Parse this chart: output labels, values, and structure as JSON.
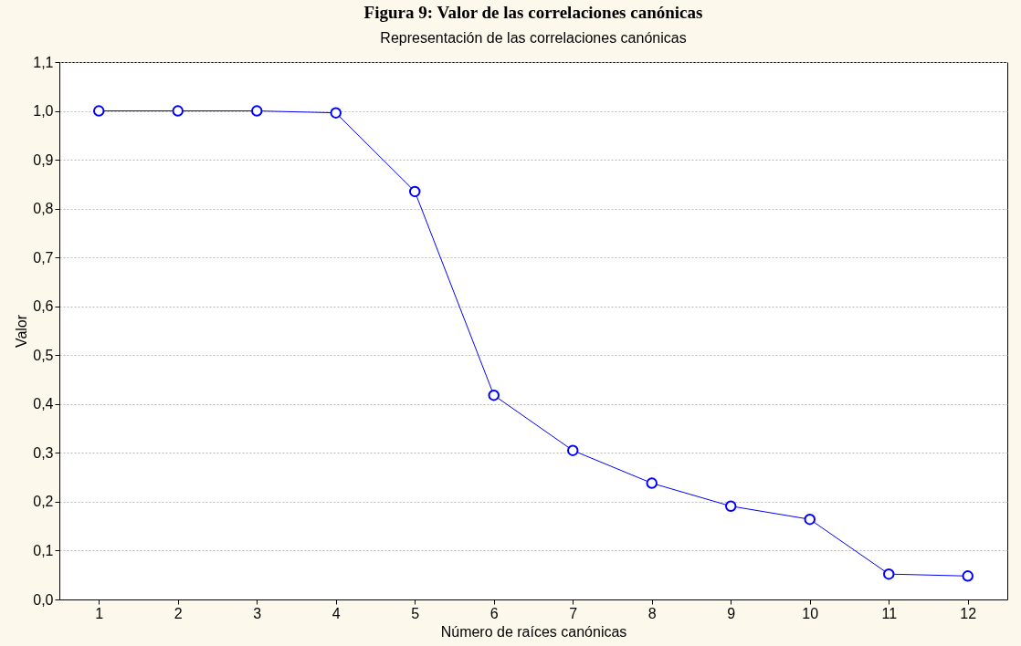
{
  "chart_data": {
    "type": "line",
    "title": "Figura 9: Valor de las correlaciones canónicas",
    "subtitle": "Representación de las correlaciones canónicas",
    "xlabel": "Número de raíces canónicas",
    "ylabel": "Valor",
    "x": [
      1,
      2,
      3,
      4,
      5,
      6,
      7,
      8,
      9,
      10,
      11,
      12
    ],
    "xlim": [
      0.5,
      12.5
    ],
    "xticks": [
      1,
      2,
      3,
      4,
      5,
      6,
      7,
      8,
      9,
      10,
      11,
      12
    ],
    "series": [
      {
        "color": "#0000ff",
        "values": [
          1.0,
          1.0,
          1.0,
          0.996,
          0.835,
          0.418,
          0.305,
          0.238,
          0.191,
          0.164,
          0.052,
          0.048
        ]
      }
    ],
    "ylim": [
      0,
      1.1
    ],
    "yticks": [
      {
        "value": 0,
        "label": "0,0"
      },
      {
        "value": 0.1,
        "label": "0,1"
      },
      {
        "value": 0.2,
        "label": "0,2"
      },
      {
        "value": 0.3,
        "label": "0,3"
      },
      {
        "value": 0.4,
        "label": "0,4"
      },
      {
        "value": 0.5,
        "label": "0,5"
      },
      {
        "value": 0.6,
        "label": "0,6"
      },
      {
        "value": 0.7,
        "label": "0,7"
      },
      {
        "value": 0.8,
        "label": "0,8"
      },
      {
        "value": 0.9,
        "label": "0,9"
      },
      {
        "value": 1.0,
        "label": "1,0"
      },
      {
        "value": 1.1,
        "label": "1,1"
      }
    ],
    "grid": "y",
    "marker": "circle",
    "line_style": "solid"
  }
}
